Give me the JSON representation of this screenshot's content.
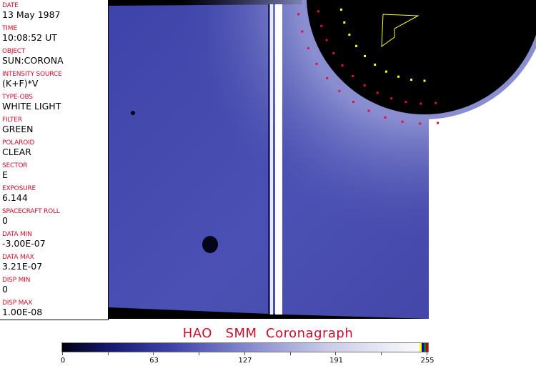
{
  "fields": [
    {
      "label": "DATE",
      "value": "13 May 1987"
    },
    {
      "label": "TIME",
      "value": "10:08:52 UT"
    },
    {
      "label": "OBJECT",
      "value": "SUN:CORONA"
    },
    {
      "label": "INTENSITY SOURCE",
      "value": "(K+F)*V"
    },
    {
      "label": "TYPE-OBS",
      "value": "WHITE LIGHT"
    },
    {
      "label": "FILTER",
      "value": "GREEN"
    },
    {
      "label": "POLAROID",
      "value": "CLEAR"
    },
    {
      "label": "SECTOR",
      "value": "E"
    },
    {
      "label": "EXPOSURE",
      "value": "6.144"
    },
    {
      "label": "SPACECRAFT ROLL",
      "value": "0"
    },
    {
      "label": "DATA MIN",
      "value": "-3.00E-07"
    },
    {
      "label": "DATA MAX",
      "value": "3.21E-07"
    },
    {
      "label": "DISP MIN",
      "value": "0"
    },
    {
      "label": "DISP MAX",
      "value": "1.00E-08"
    }
  ],
  "title": "HAO   SMM  Coronagraph",
  "colorbar": {
    "ticks": [
      "0",
      "63",
      "127",
      "191",
      "255"
    ],
    "colors": {
      "low": "#000010",
      "mid": "#3e43a8",
      "high": "#ffffff"
    }
  },
  "colors": {
    "label": "#c8102e",
    "sky": "#4a50b0",
    "occulter": "#000000",
    "marker_red": "#e0103a",
    "marker_yellow": "#ffff30"
  }
}
